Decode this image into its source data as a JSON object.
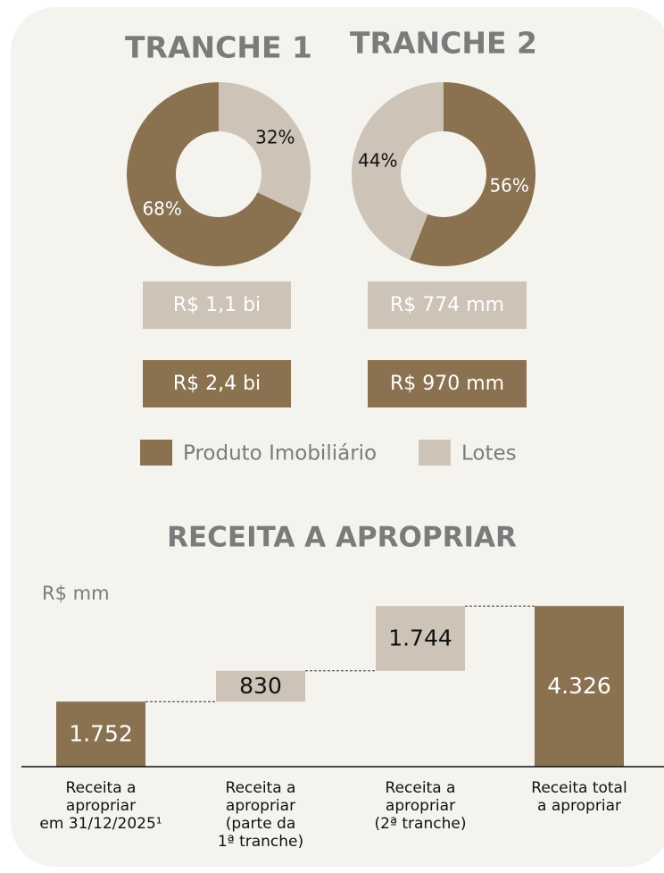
{
  "legend": [
    {
      "name": "Produto Imobiliário",
      "color": "#8a7150"
    },
    {
      "name": "Lotes",
      "color": "#cdc3b7"
    }
  ],
  "chart_data": [
    {
      "type": "donut",
      "title": "TRANCHE 1",
      "values": [
        32,
        68
      ],
      "value_labels": [
        "32%",
        "68%"
      ],
      "colors": [
        "#cdc3b7",
        "#8a7150"
      ],
      "amounts": [
        {
          "label": "R$ 1,1 bi",
          "color": "#cdc3b7"
        },
        {
          "label": "R$ 2,4 bi",
          "color": "#8a7150"
        }
      ]
    },
    {
      "type": "donut",
      "title": "TRANCHE 2",
      "values": [
        56,
        44
      ],
      "value_labels": [
        "56%",
        "44%"
      ],
      "colors": [
        "#8a7150",
        "#cdc3b7"
      ],
      "amounts": [
        {
          "label": "R$ 774 mm",
          "color": "#cdc3b7"
        },
        {
          "label": "R$ 970 mm",
          "color": "#8a7150"
        }
      ]
    },
    {
      "type": "waterfall",
      "title": "RECEITA A APROPRIAR",
      "y_label": "R$ mm",
      "categories": [
        "Receita a\napropriar\nem 31/12/2025¹",
        "Receita a\napropriar\n(parte da\n1ª tranche)",
        "Receita a\napropriar\n(2ª tranche)",
        "Receita total\na apropriar"
      ],
      "values": [
        1752,
        830,
        1744,
        4326
      ],
      "value_labels": [
        "1.752",
        "830",
        "1.744",
        "4.326"
      ],
      "colors": [
        "#8a7150",
        "#cdc3b7",
        "#cdc3b7",
        "#8a7150"
      ],
      "total": [
        false,
        false,
        false,
        true
      ],
      "ylim": [
        0,
        4500
      ]
    }
  ]
}
